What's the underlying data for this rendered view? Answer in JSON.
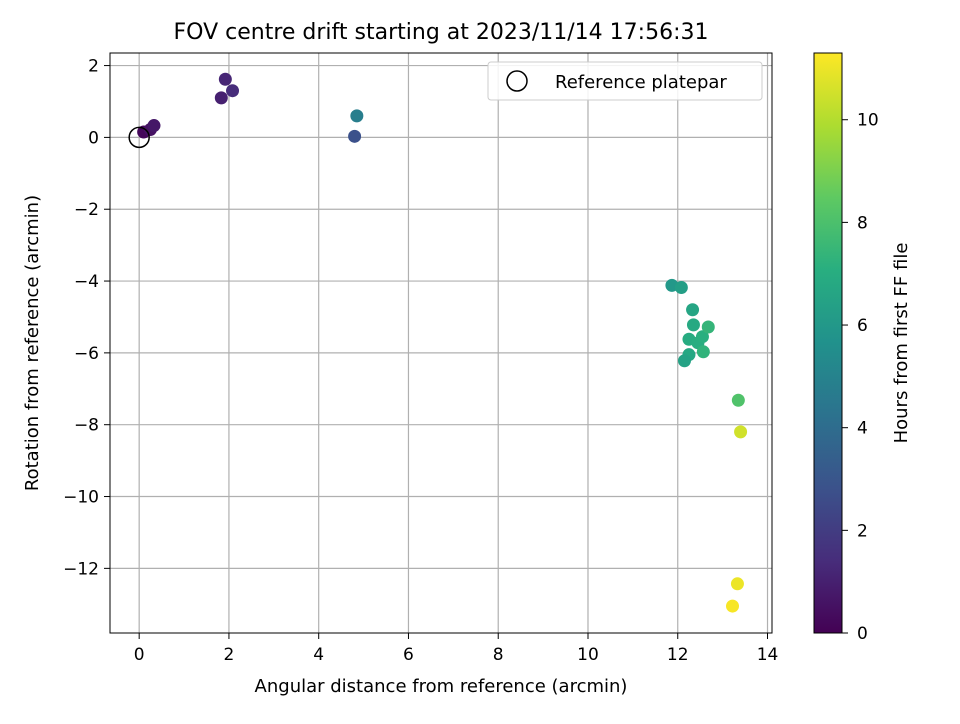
{
  "chart_data": {
    "type": "scatter",
    "title": "FOV centre drift starting at 2023/11/14 17:56:31",
    "xlabel": "Angular distance from reference (arcmin)",
    "ylabel": "Rotation from reference (arcmin)",
    "xlim": [
      -0.65,
      14.1
    ],
    "ylim": [
      -13.8,
      2.35
    ],
    "xticks": [
      0,
      2,
      4,
      6,
      8,
      10,
      12,
      14
    ],
    "yticks": [
      2,
      0,
      -2,
      -4,
      -6,
      -8,
      -10,
      -12
    ],
    "grid": true,
    "legend": {
      "label": "Reference platepar",
      "placement": "top-right"
    },
    "reference_point": {
      "x": 0.0,
      "y": 0.0
    },
    "colorbar": {
      "label": "Hours from first FF file",
      "min": 0,
      "max": 11.3,
      "ticks": [
        0,
        2,
        4,
        6,
        8,
        10
      ],
      "colormap": "viridis"
    },
    "points": [
      {
        "x": 0.1,
        "y": 0.15,
        "hours": 0.2
      },
      {
        "x": 0.25,
        "y": 0.22,
        "hours": 0.5
      },
      {
        "x": 0.33,
        "y": 0.33,
        "hours": 0.7
      },
      {
        "x": 1.83,
        "y": 1.1,
        "hours": 1.0
      },
      {
        "x": 1.92,
        "y": 1.62,
        "hours": 1.2
      },
      {
        "x": 2.08,
        "y": 1.3,
        "hours": 1.4
      },
      {
        "x": 4.8,
        "y": 0.03,
        "hours": 2.8
      },
      {
        "x": 4.85,
        "y": 0.6,
        "hours": 4.8
      },
      {
        "x": 11.87,
        "y": -4.12,
        "hours": 6.0
      },
      {
        "x": 12.08,
        "y": -4.18,
        "hours": 6.3
      },
      {
        "x": 12.33,
        "y": -4.8,
        "hours": 6.6
      },
      {
        "x": 12.35,
        "y": -5.22,
        "hours": 6.8
      },
      {
        "x": 12.25,
        "y": -5.62,
        "hours": 6.9
      },
      {
        "x": 12.45,
        "y": -5.72,
        "hours": 7.0
      },
      {
        "x": 12.55,
        "y": -5.55,
        "hours": 7.1
      },
      {
        "x": 12.68,
        "y": -5.28,
        "hours": 7.4
      },
      {
        "x": 12.25,
        "y": -6.05,
        "hours": 6.7
      },
      {
        "x": 12.15,
        "y": -6.22,
        "hours": 6.5
      },
      {
        "x": 12.57,
        "y": -5.97,
        "hours": 7.3
      },
      {
        "x": 13.35,
        "y": -7.32,
        "hours": 8.1
      },
      {
        "x": 13.4,
        "y": -8.2,
        "hours": 10.5
      },
      {
        "x": 13.33,
        "y": -12.43,
        "hours": 11.0
      },
      {
        "x": 13.22,
        "y": -13.05,
        "hours": 11.2
      }
    ]
  }
}
